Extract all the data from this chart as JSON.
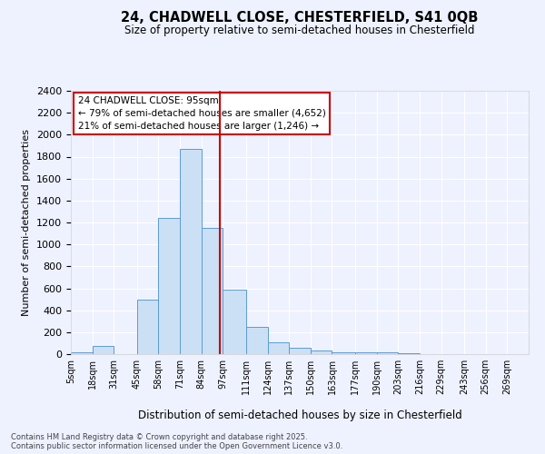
{
  "title1": "24, CHADWELL CLOSE, CHESTERFIELD, S41 0QB",
  "title2": "Size of property relative to semi-detached houses in Chesterfield",
  "xlabel": "Distribution of semi-detached houses by size in Chesterfield",
  "ylabel": "Number of semi-detached properties",
  "property_size": 95,
  "annotation_title": "24 CHADWELL CLOSE: 95sqm",
  "annotation_line1": "← 79% of semi-detached houses are smaller (4,652)",
  "annotation_line2": "21% of semi-detached houses are larger (1,246) →",
  "bin_labels": [
    "5sqm",
    "18sqm",
    "31sqm",
    "45sqm",
    "58sqm",
    "71sqm",
    "84sqm",
    "97sqm",
    "111sqm",
    "124sqm",
    "137sqm",
    "150sqm",
    "163sqm",
    "177sqm",
    "190sqm",
    "203sqm",
    "216sqm",
    "229sqm",
    "243sqm",
    "256sqm",
    "269sqm"
  ],
  "bin_edges": [
    5,
    18,
    31,
    45,
    58,
    71,
    84,
    97,
    111,
    124,
    137,
    150,
    163,
    177,
    190,
    203,
    216,
    229,
    243,
    256,
    269,
    282
  ],
  "bar_heights": [
    15,
    75,
    0,
    495,
    1240,
    1870,
    1150,
    590,
    245,
    110,
    60,
    35,
    20,
    15,
    15,
    5,
    0,
    0,
    0,
    0,
    0
  ],
  "bar_color": "#cce0f5",
  "bar_edge_color": "#5b9bd5",
  "vline_x": 95,
  "vline_color": "#cc0000",
  "background_color": "#eef2ff",
  "grid_color": "#ffffff",
  "annotation_box_color": "#ffffff",
  "annotation_box_edge": "#cc0000",
  "ylim": [
    0,
    2400
  ],
  "yticks": [
    0,
    200,
    400,
    600,
    800,
    1000,
    1200,
    1400,
    1600,
    1800,
    2000,
    2200,
    2400
  ],
  "footnote1": "Contains HM Land Registry data © Crown copyright and database right 2025.",
  "footnote2": "Contains public sector information licensed under the Open Government Licence v3.0."
}
